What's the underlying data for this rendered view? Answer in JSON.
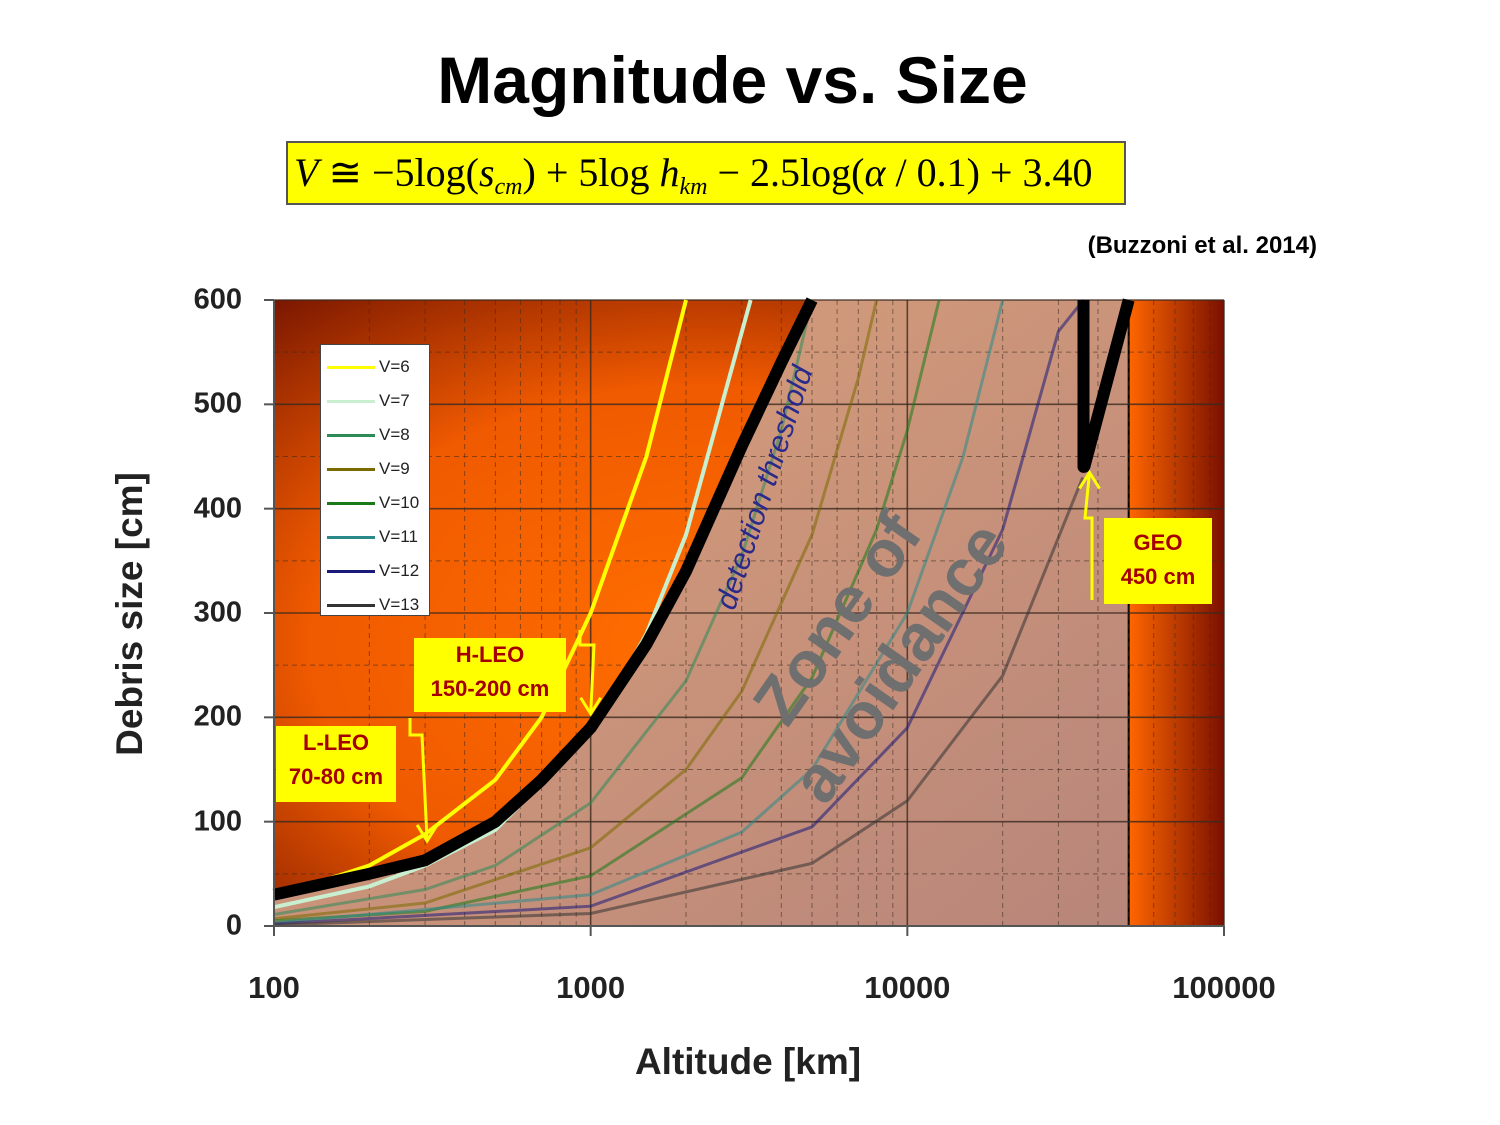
{
  "title": "Magnitude vs. Size",
  "formula": {
    "V": "V",
    "approx": " ≅ −5log(",
    "s": "s",
    "s_sub": "cm",
    "mid": ") + 5log ",
    "h": "h",
    "h_sub": "km",
    "tail1": " − 2.5log(",
    "alpha": "α",
    "tail2": " / 0.1) + 3.40"
  },
  "citation": "(Buzzoni et al. 2014)",
  "colors": {
    "bg_bright": "#ff6a00",
    "bg_dark": "#6a0e00",
    "zone_fill": "#d29a70",
    "threshold_line": "#000000",
    "callout_bg": "#ffff00",
    "callout_text": "#a50000"
  },
  "annotations": {
    "zone": [
      "Zone of",
      "avoidance"
    ],
    "threshold": "detection threshold",
    "lleo": [
      "L-LEO",
      "70-80 cm"
    ],
    "hleo": [
      "H-LEO",
      "150-200 cm"
    ],
    "geo": [
      "GEO",
      "450 cm"
    ]
  },
  "chart_data": {
    "type": "line",
    "title": "Magnitude vs. Size",
    "xlabel": "Altitude [km]",
    "ylabel": "Debris size [cm]",
    "xscale": "log",
    "xlim": [
      100,
      100000
    ],
    "ylim": [
      0,
      600
    ],
    "xticks": [
      "100",
      "1000",
      "10000",
      "100000"
    ],
    "yticks": [
      "0",
      "100",
      "200",
      "300",
      "400",
      "500",
      "600"
    ],
    "grid": true,
    "legend_position": "top-left",
    "series": [
      {
        "name": "V=6",
        "color": "#ffff00",
        "x": [
          100,
          200,
          300,
          500,
          700,
          1000,
          1500,
          2000
        ],
        "y": [
          28,
          58,
          88,
          140,
          200,
          300,
          450,
          600
        ]
      },
      {
        "name": "V=7",
        "color": "#c8f0d0",
        "x": [
          100,
          200,
          300,
          500,
          1000,
          1500,
          2000,
          3200
        ],
        "y": [
          18,
          38,
          58,
          92,
          185,
          280,
          375,
          600
        ]
      },
      {
        "name": "V=8",
        "color": "#2e8b57",
        "x": [
          100,
          300,
          500,
          1000,
          2000,
          3000,
          4000,
          5000
        ],
        "y": [
          11,
          35,
          58,
          118,
          235,
          355,
          475,
          600
        ]
      },
      {
        "name": "V=9",
        "color": "#7a6a00",
        "x": [
          100,
          300,
          1000,
          2000,
          3000,
          5000,
          7000,
          8000
        ],
        "y": [
          7,
          22,
          75,
          150,
          225,
          375,
          525,
          600
        ]
      },
      {
        "name": "V=10",
        "color": "#1a7a1a",
        "x": [
          100,
          300,
          1000,
          3000,
          5000,
          8000,
          10000,
          12600
        ],
        "y": [
          5,
          14,
          48,
          142,
          238,
          380,
          475,
          600
        ]
      },
      {
        "name": "V=11",
        "color": "#2a8a8a",
        "x": [
          100,
          1000,
          3000,
          5000,
          10000,
          15000,
          20000
        ],
        "y": [
          3,
          30,
          90,
          150,
          300,
          450,
          600
        ]
      },
      {
        "name": "V=12",
        "color": "#1a1a7a",
        "x": [
          100,
          1000,
          5000,
          10000,
          20000,
          30000,
          36000
        ],
        "y": [
          2,
          19,
          95,
          190,
          380,
          570,
          600
        ]
      },
      {
        "name": "V=13",
        "color": "#333333",
        "x": [
          100,
          1000,
          5000,
          10000,
          20000,
          35786
        ],
        "y": [
          1,
          12,
          60,
          120,
          240,
          430
        ]
      }
    ],
    "threshold_curve": {
      "name": "detection threshold",
      "x": [
        100,
        200,
        300,
        500,
        700,
        1000,
        1500,
        2000,
        3000,
        4000,
        5000
      ],
      "y": [
        30,
        50,
        63,
        100,
        140,
        190,
        270,
        340,
        460,
        540,
        600
      ],
      "geo_x": [
        36000,
        36000,
        36200,
        50000
      ],
      "geo_y": [
        600,
        440,
        440,
        600
      ]
    },
    "annotations_data": [
      {
        "label": "L-LEO",
        "x": 300,
        "y": 70
      },
      {
        "label": "H-LEO",
        "x": 1000,
        "y": 190
      },
      {
        "label": "GEO",
        "x": 36000,
        "y": 450
      }
    ]
  },
  "legend_items": [
    "V=6",
    "V=7",
    "V=8",
    "V=9",
    "V=10",
    "V=11",
    "V=12",
    "V=13"
  ]
}
